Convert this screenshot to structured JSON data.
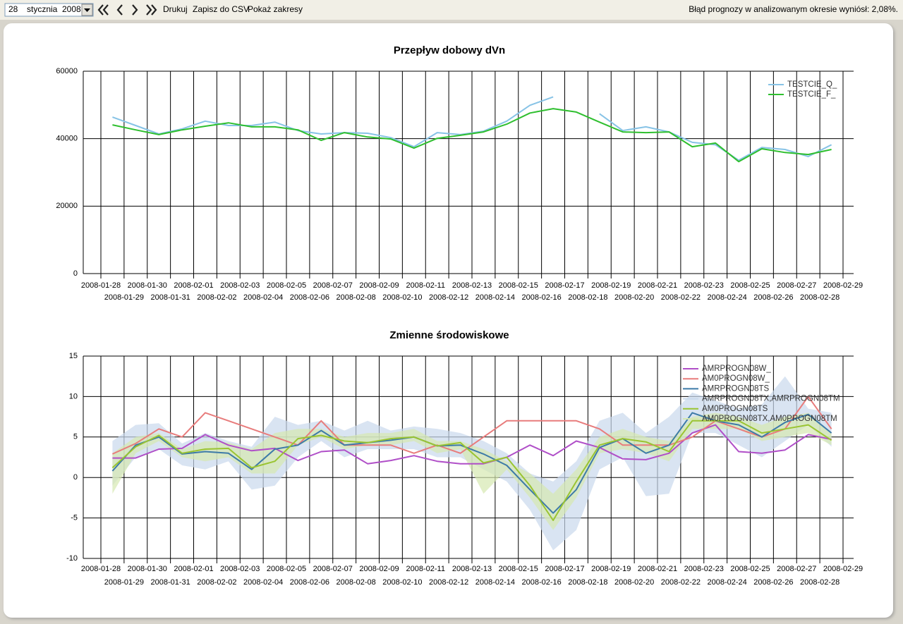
{
  "toolbar": {
    "day": "28",
    "month": "stycznia",
    "year": "2008",
    "buttons": [
      "Drukuj",
      "Zapisz do CSV",
      "Pokaż zakresy"
    ],
    "status": "Błąd prognozy w analizowanym okresie wyniósł: 2,08%."
  },
  "chart_data": [
    {
      "type": "line",
      "title": "Przepływ dobowy dVn",
      "xlim": [
        "2008-01-28",
        "2008-02-29"
      ],
      "xticks": [
        "2008-01-28",
        "2008-01-29",
        "2008-01-30",
        "2008-01-31",
        "2008-02-01",
        "2008-02-02",
        "2008-02-03",
        "2008-02-04",
        "2008-02-05",
        "2008-02-06",
        "2008-02-07",
        "2008-02-08",
        "2008-02-09",
        "2008-02-10",
        "2008-02-11",
        "2008-02-12",
        "2008-02-13",
        "2008-02-14",
        "2008-02-15",
        "2008-02-16",
        "2008-02-17",
        "2008-02-18",
        "2008-02-19",
        "2008-02-20",
        "2008-02-21",
        "2008-02-22",
        "2008-02-23",
        "2008-02-24",
        "2008-02-25",
        "2008-02-26",
        "2008-02-27",
        "2008-02-28",
        "2008-02-29"
      ],
      "x": [
        "2008-01-28",
        "2008-01-29",
        "2008-01-30",
        "2008-01-31",
        "2008-02-01",
        "2008-02-02",
        "2008-02-03",
        "2008-02-04",
        "2008-02-05",
        "2008-02-06",
        "2008-02-07",
        "2008-02-08",
        "2008-02-09",
        "2008-02-10",
        "2008-02-11",
        "2008-02-12",
        "2008-02-13",
        "2008-02-14",
        "2008-02-15",
        "2008-02-16",
        "2008-02-17",
        "2008-02-18",
        "2008-02-19",
        "2008-02-20",
        "2008-02-21",
        "2008-02-22",
        "2008-02-23",
        "2008-02-24",
        "2008-02-25",
        "2008-02-26",
        "2008-02-27",
        "2008-02-28"
      ],
      "ylim": [
        0,
        60000
      ],
      "yticks": [
        0,
        20000,
        40000,
        60000
      ],
      "grid": true,
      "legend": "upper right",
      "series": [
        {
          "name": "TESTCIE_Q_",
          "color": "#87c3e6",
          "values": [
            46400,
            43900,
            41400,
            42900,
            45200,
            43900,
            43900,
            44900,
            42400,
            41400,
            41800,
            41600,
            40300,
            37600,
            41800,
            41200,
            42200,
            45200,
            49900,
            52400,
            null,
            47400,
            42400,
            43500,
            42000,
            38900,
            38200,
            33600,
            37400,
            36800,
            34700,
            38200
          ]
        },
        {
          "name": "TESTCIE_F_",
          "color": "#2fbf2f",
          "values": [
            44100,
            42600,
            41200,
            42600,
            43700,
            44700,
            43500,
            43500,
            42600,
            39500,
            41800,
            40500,
            39900,
            37200,
            40100,
            41000,
            42000,
            44300,
            47600,
            48900,
            47900,
            44900,
            42000,
            41800,
            42000,
            37600,
            38700,
            33200,
            37000,
            35900,
            35300,
            36800
          ]
        }
      ]
    },
    {
      "type": "line",
      "title": "Zmienne środowiskowe",
      "xlim": [
        "2008-01-28",
        "2008-02-29"
      ],
      "xticks": [
        "2008-01-28",
        "2008-01-29",
        "2008-01-30",
        "2008-01-31",
        "2008-02-01",
        "2008-02-02",
        "2008-02-03",
        "2008-02-04",
        "2008-02-05",
        "2008-02-06",
        "2008-02-07",
        "2008-02-08",
        "2008-02-09",
        "2008-02-10",
        "2008-02-11",
        "2008-02-12",
        "2008-02-13",
        "2008-02-14",
        "2008-02-15",
        "2008-02-16",
        "2008-02-17",
        "2008-02-18",
        "2008-02-19",
        "2008-02-20",
        "2008-02-21",
        "2008-02-22",
        "2008-02-23",
        "2008-02-24",
        "2008-02-25",
        "2008-02-26",
        "2008-02-27",
        "2008-02-28",
        "2008-02-29"
      ],
      "x": [
        "2008-01-28",
        "2008-01-29",
        "2008-01-30",
        "2008-01-31",
        "2008-02-01",
        "2008-02-02",
        "2008-02-03",
        "2008-02-04",
        "2008-02-05",
        "2008-02-06",
        "2008-02-07",
        "2008-02-08",
        "2008-02-09",
        "2008-02-10",
        "2008-02-11",
        "2008-02-12",
        "2008-02-13",
        "2008-02-14",
        "2008-02-15",
        "2008-02-16",
        "2008-02-17",
        "2008-02-18",
        "2008-02-19",
        "2008-02-20",
        "2008-02-21",
        "2008-02-22",
        "2008-02-23",
        "2008-02-24",
        "2008-02-25",
        "2008-02-26",
        "2008-02-27",
        "2008-02-28"
      ],
      "ylim": [
        -10,
        15
      ],
      "yticks": [
        -10,
        -5,
        0,
        5,
        10,
        15
      ],
      "grid": true,
      "legend": "upper right",
      "series": [
        {
          "name": "AMRPROGN08W_",
          "color": "#b04fc8",
          "values": [
            2.4,
            2.4,
            3.5,
            3.6,
            5.3,
            4.0,
            3.3,
            3.6,
            2.1,
            3.2,
            3.4,
            1.7,
            2.1,
            2.7,
            2.0,
            1.7,
            1.7,
            2.5,
            4.0,
            2.7,
            4.5,
            3.7,
            2.3,
            2.2,
            3.0,
            5.5,
            6.5,
            3.2,
            3.0,
            3.4,
            5.3,
            4.7
          ]
        },
        {
          "name": "AM0PROGN08W_",
          "color": "#e87c7c",
          "values": [
            2.9,
            4.2,
            6.0,
            5.0,
            8.0,
            7.0,
            6.0,
            5.0,
            4.0,
            7.0,
            4.0,
            4.0,
            4.0,
            3.0,
            4.0,
            3.0,
            5.0,
            7.0,
            7.0,
            7.0,
            7.0,
            6.0,
            4.0,
            4.0,
            4.0,
            5.0,
            7.0,
            6.0,
            5.0,
            6.0,
            10.0,
            6.0
          ]
        },
        {
          "name": "AMRPROGN08TS",
          "color": "#3d7aa8",
          "values": [
            0.8,
            4.0,
            5.0,
            2.9,
            3.2,
            3.0,
            1.0,
            3.5,
            4.0,
            5.8,
            4.0,
            4.3,
            4.6,
            5.0,
            3.9,
            4.0,
            2.9,
            1.5,
            -1.5,
            -4.4,
            -1.5,
            3.7,
            4.8,
            3.0,
            4.0,
            8.0,
            7.0,
            6.5,
            5.0,
            6.8,
            7.8,
            5.5
          ]
        },
        {
          "name": "AMRPROGN08TX,AMRPROGN08TM",
          "color": "#c9d9ec",
          "low": [
            -1.0,
            2.5,
            3.5,
            1.5,
            1.0,
            2.0,
            -1.5,
            -1.0,
            2.5,
            4.5,
            2.5,
            3.5,
            3.5,
            3.5,
            2.5,
            2.5,
            1.0,
            -0.5,
            -4.0,
            -9.0,
            -6.5,
            1.0,
            2.5,
            -2.3,
            -2.0,
            5.5,
            5.5,
            4.0,
            2.5,
            4.5,
            6.5,
            3.8
          ],
          "high": [
            4.5,
            6.5,
            6.7,
            4.2,
            5.5,
            4.5,
            3.8,
            7.5,
            6.5,
            7.0,
            5.8,
            7.0,
            5.8,
            6.3,
            6.0,
            5.5,
            4.5,
            3.0,
            0.5,
            -0.5,
            2.0,
            7.0,
            8.0,
            5.5,
            7.5,
            10.5,
            9.5,
            8.5,
            9.0,
            12.5,
            8.5,
            8.0
          ]
        },
        {
          "name": "AM0PROGN08TS",
          "color": "#9ac431",
          "values": [
            1.2,
            3.8,
            5.2,
            3.0,
            3.5,
            3.6,
            1.2,
            2.0,
            4.8,
            5.2,
            4.5,
            4.3,
            4.8,
            5.0,
            3.9,
            4.3,
            1.8,
            2.5,
            -1.0,
            -5.3,
            -0.5,
            4.0,
            4.8,
            4.4,
            3.2,
            7.0,
            7.0,
            7.0,
            5.5,
            6.0,
            6.5,
            4.6
          ]
        },
        {
          "name": "AM0PROGN08TX,AM0PROGN08TM",
          "color": "#d6e8b0",
          "low": [
            -2.0,
            3.0,
            4.5,
            2.5,
            2.0,
            2.5,
            0.5,
            0.5,
            4.0,
            5.0,
            3.5,
            4.0,
            4.0,
            4.5,
            3.0,
            3.5,
            -2.0,
            1.0,
            -2.5,
            -6.5,
            -2.5,
            3.0,
            3.5,
            3.0,
            2.0,
            6.0,
            6.0,
            6.0,
            4.5,
            5.0,
            5.5,
            4.0
          ],
          "high": [
            3.0,
            5.0,
            5.5,
            3.5,
            4.5,
            4.3,
            3.5,
            5.5,
            6.0,
            6.0,
            5.0,
            5.5,
            5.5,
            6.0,
            4.5,
            4.5,
            3.5,
            2.0,
            0.5,
            -2.0,
            1.0,
            5.0,
            6.0,
            5.0,
            4.5,
            7.5,
            8.0,
            7.5,
            6.5,
            7.5,
            8.0,
            5.5
          ]
        }
      ]
    }
  ]
}
